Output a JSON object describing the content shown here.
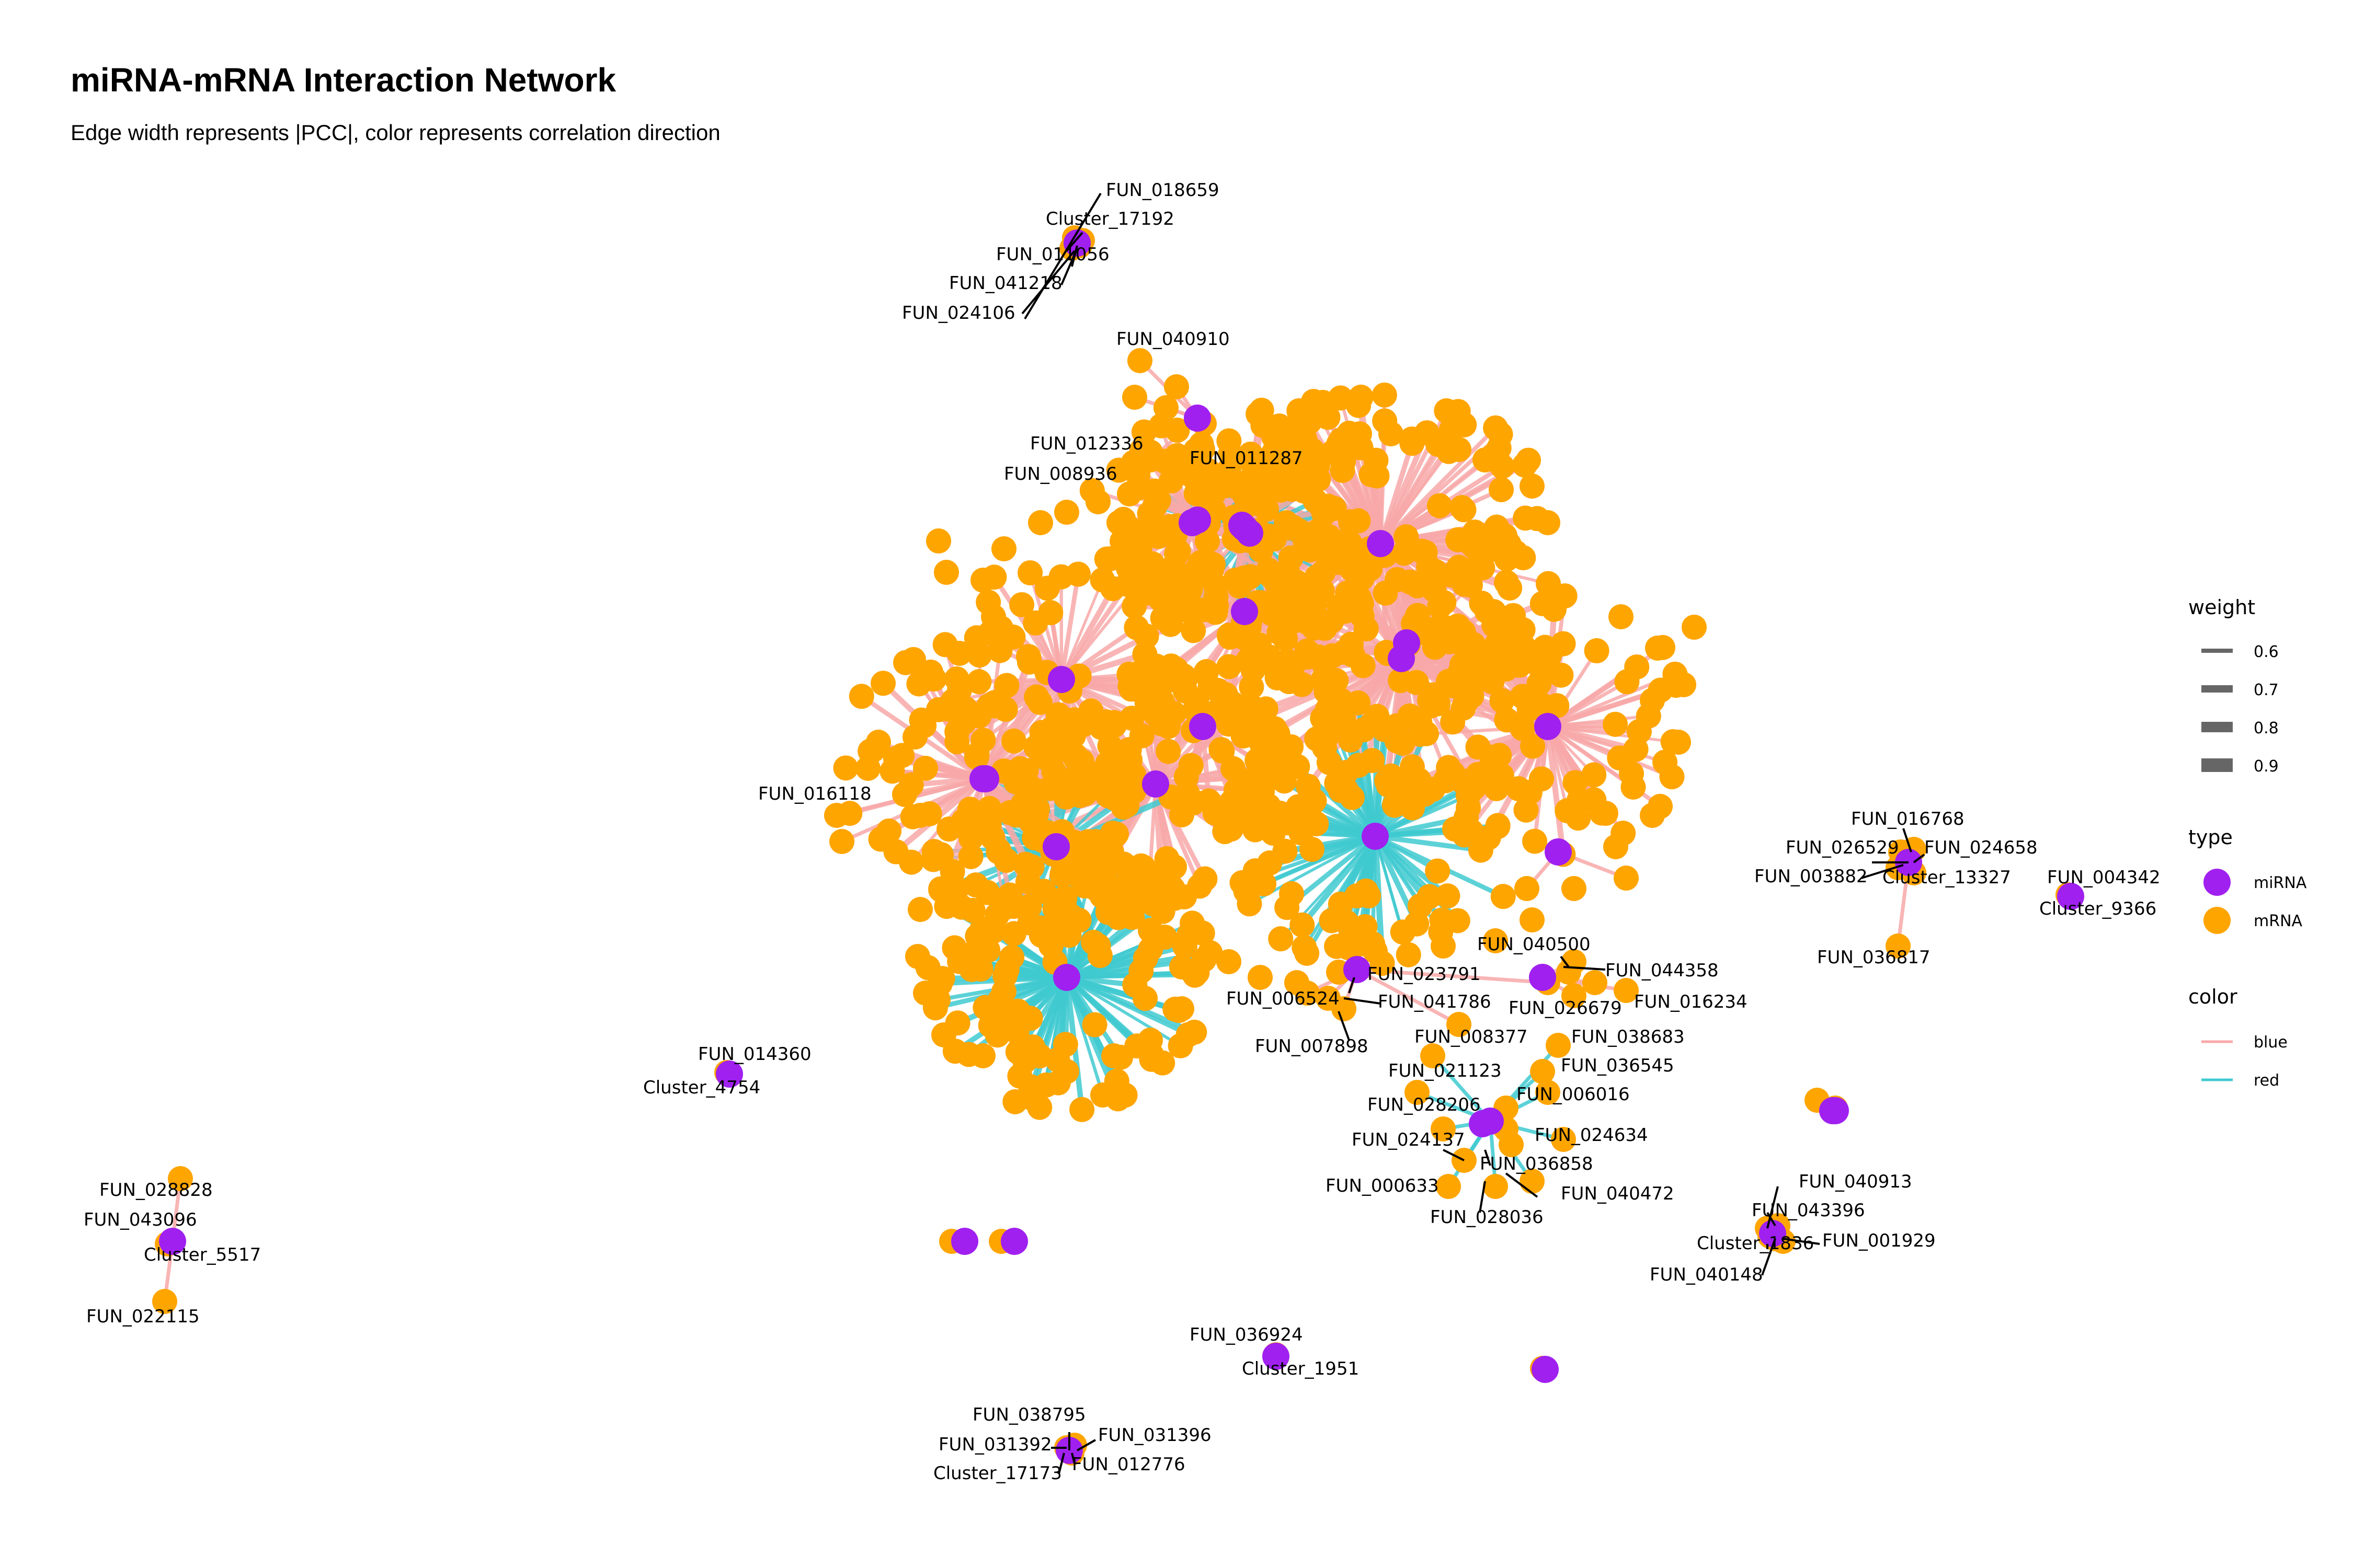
{
  "title": "miRNA-mRNA Interaction Network",
  "subtitle": "Edge width represents |PCC|, color represents correlation direction",
  "colors": {
    "mirna": "#a020f0",
    "mrna": "#ffa500",
    "edge_blue": "#f8a8a8",
    "edge_red": "#3fcad0",
    "leader": "#000000"
  },
  "legend": {
    "weight": {
      "title": "weight",
      "items": [
        "0.6",
        "0.7",
        "0.8",
        "0.9"
      ]
    },
    "type": {
      "title": "type",
      "items": [
        {
          "label": "miRNA",
          "key": "mirna"
        },
        {
          "label": "mRNA",
          "key": "mrna"
        }
      ]
    },
    "color": {
      "title": "color",
      "items": [
        {
          "label": "blue",
          "key": "edge_blue"
        },
        {
          "label": "red",
          "key": "edge_red"
        }
      ]
    }
  },
  "labels": [
    "FUN_018659",
    "Cluster_17192",
    "FUN_011056",
    "FUN_041218",
    "FUN_024106",
    "FUN_040910",
    "FUN_012336",
    "FUN_011287",
    "FUN_008936",
    "FUN_016118",
    "FUN_016768",
    "FUN_026529",
    "FUN_024658",
    "FUN_003882",
    "Cluster_13327",
    "FUN_036817",
    "FUN_004342",
    "Cluster_9366",
    "FUN_040500",
    "FUN_044358",
    "FUN_023791",
    "FUN_006524",
    "FUN_041786",
    "FUN_026679",
    "FUN_016234",
    "FUN_007898",
    "FUN_008377",
    "FUN_038683",
    "FUN_036545",
    "FUN_021123",
    "FUN_028206",
    "FUN_006016",
    "FUN_024137",
    "FUN_024634",
    "FUN_036858",
    "FUN_000633",
    "FUN_040472",
    "FUN_028036",
    "FUN_014360",
    "Cluster_4754",
    "FUN_028828",
    "FUN_043096",
    "Cluster_5517",
    "FUN_022115",
    "FUN_040913",
    "FUN_043396",
    "Cluster_1836",
    "FUN_001929",
    "FUN_040148",
    "FUN_036924",
    "Cluster_1951",
    "FUN_038795",
    "FUN_031396",
    "FUN_031392",
    "Cluster_17173",
    "FUN_012776"
  ]
}
